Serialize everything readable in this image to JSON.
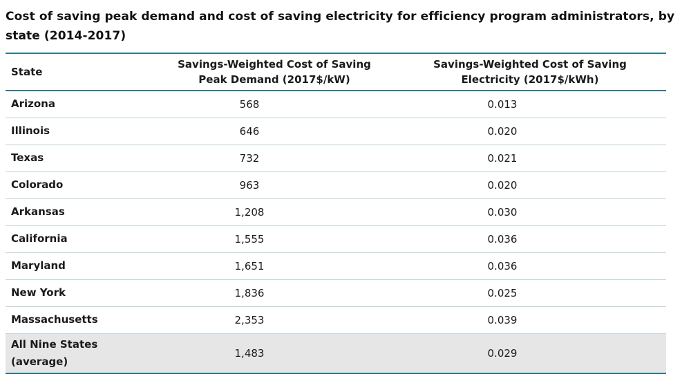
{
  "title": "Cost of saving peak demand and cost of saving electricity for efficiency program administrators, by state (2014-2017)",
  "table": {
    "headers": {
      "state": "State",
      "peak_line1": "Savings-Weighted Cost of Saving",
      "peak_line2": "Peak Demand (2017$/kW)",
      "elec_line1": "Savings-Weighted Cost of Saving",
      "elec_line2": "Electricity (2017$/kWh)"
    },
    "rows": [
      {
        "state": "Arizona",
        "peak": "568",
        "elec": "0.013"
      },
      {
        "state": "Illinois",
        "peak": "646",
        "elec": "0.020"
      },
      {
        "state": "Texas",
        "peak": "732",
        "elec": "0.021"
      },
      {
        "state": "Colorado",
        "peak": "963",
        "elec": "0.020"
      },
      {
        "state": "Arkansas",
        "peak": "1,208",
        "elec": "0.030"
      },
      {
        "state": "California",
        "peak": "1,555",
        "elec": "0.036"
      },
      {
        "state": "Maryland",
        "peak": "1,651",
        "elec": "0.036"
      },
      {
        "state": "New York",
        "peak": "1,836",
        "elec": "0.025"
      },
      {
        "state": "Massachusetts",
        "peak": "2,353",
        "elec": "0.039"
      }
    ],
    "average": {
      "state_line1": "All Nine States",
      "state_line2": "(average)",
      "peak": "1,483",
      "elec": "0.029"
    }
  },
  "colors": {
    "rule": "#2e7a8c",
    "average_row_bg": "#e6e6e6"
  }
}
